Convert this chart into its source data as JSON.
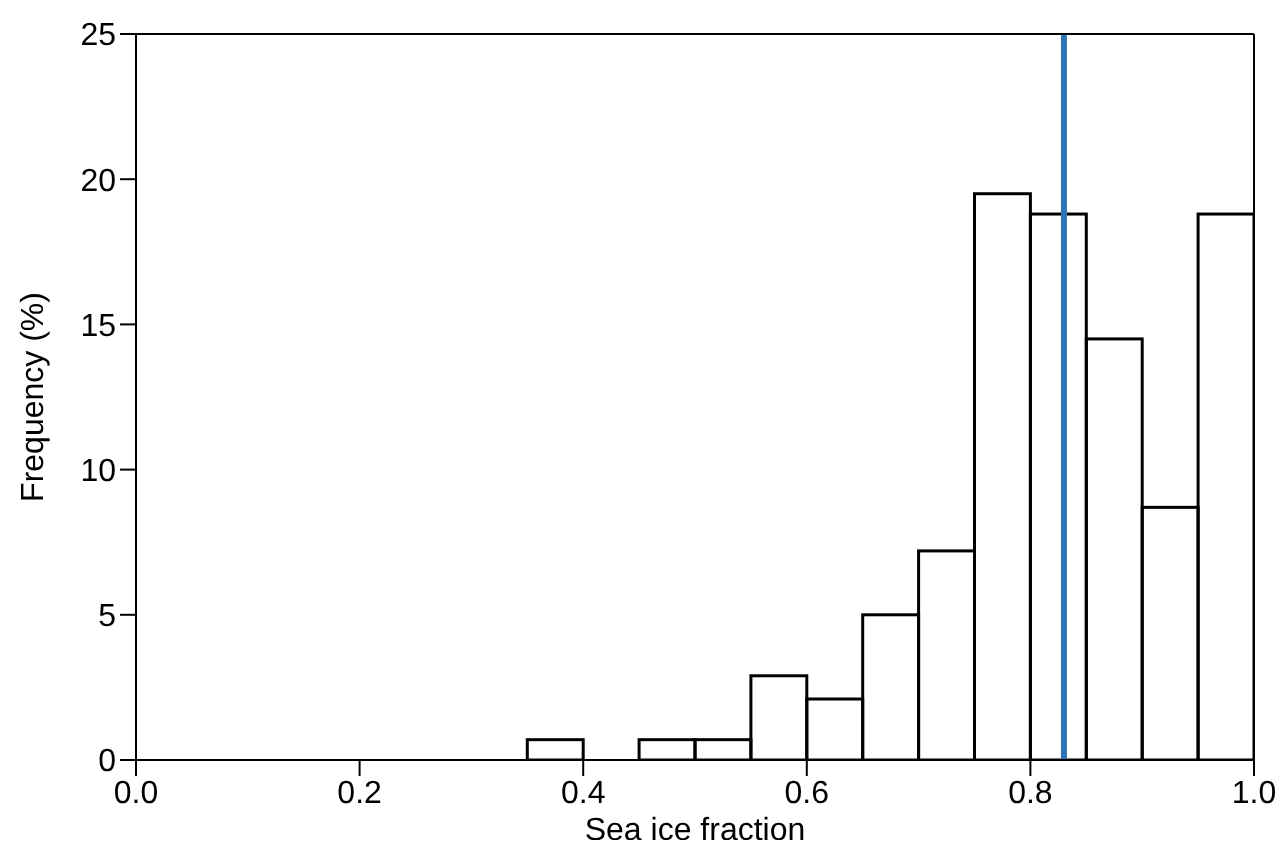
{
  "chart_data": {
    "type": "histogram",
    "xlabel": "Sea ice fraction",
    "ylabel": "Frequency (%)",
    "bins": [
      0.35,
      0.4,
      0.45,
      0.5,
      0.55,
      0.6,
      0.65,
      0.7,
      0.75,
      0.8,
      0.85,
      0.9,
      0.95,
      1.0
    ],
    "values": [
      0.7,
      0,
      0.7,
      0.7,
      2.9,
      2.1,
      5.0,
      7.2,
      19.5,
      18.8,
      14.5,
      8.7,
      18.8
    ],
    "color": "#000000",
    "xlim": [
      0,
      1
    ],
    "xticks": [
      {
        "value": 0,
        "label": "0.0"
      },
      {
        "value": 0.2,
        "label": "0.2"
      },
      {
        "value": 0.4,
        "label": "0.4"
      },
      {
        "value": 0.6,
        "label": "0.6"
      },
      {
        "value": 0.8,
        "label": "0.8"
      },
      {
        "value": 1,
        "label": "1.0"
      }
    ],
    "ylim": [
      0,
      25
    ],
    "yticks": [
      0,
      5,
      10,
      15,
      20,
      25
    ],
    "ref_lines": [
      {
        "axis": "x",
        "value": 0.83,
        "color": "#2e75b6"
      }
    ],
    "grid": false,
    "legend": false
  }
}
